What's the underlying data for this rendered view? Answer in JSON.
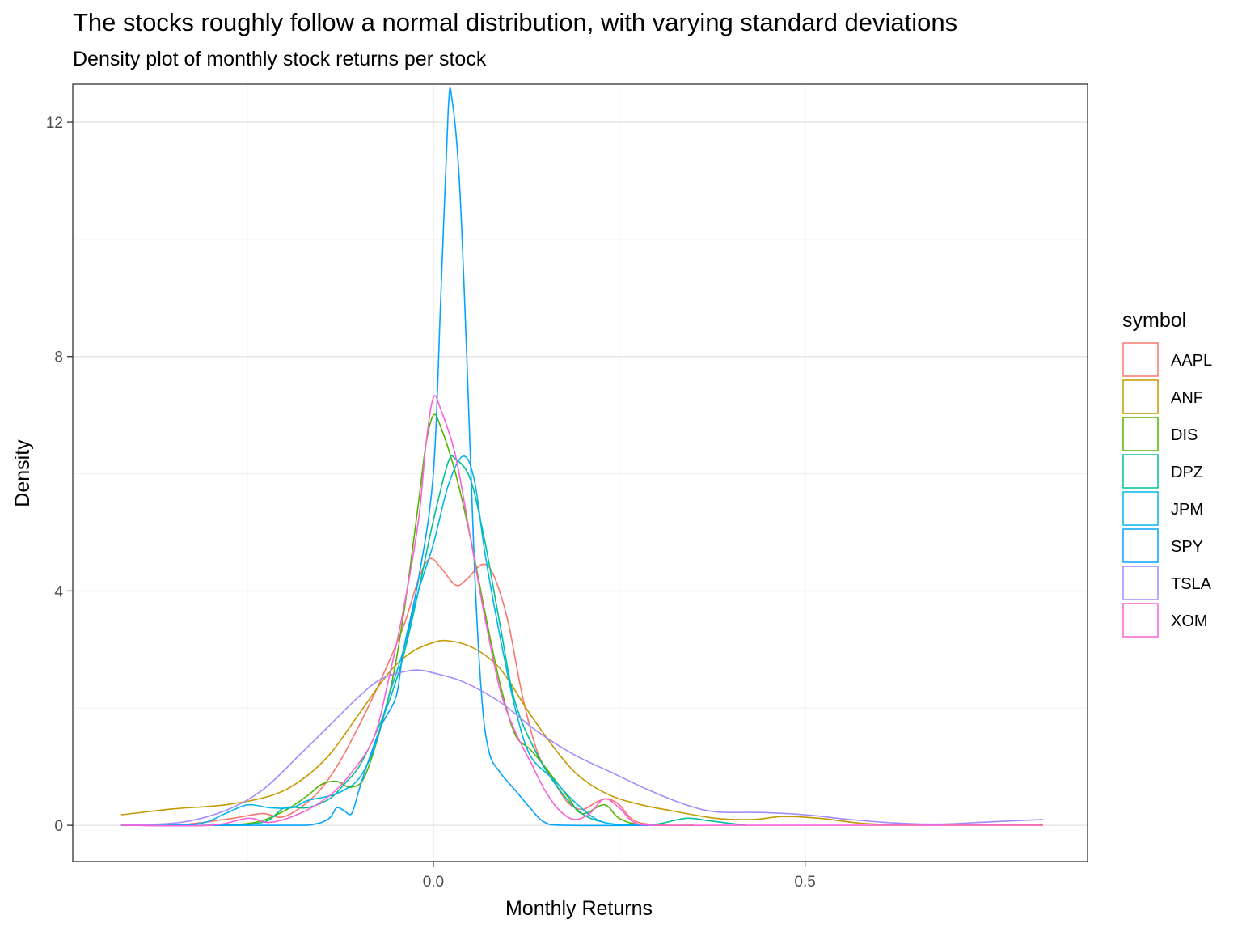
{
  "chart_data": {
    "type": "line",
    "title": "The stocks roughly follow a normal distribution, with varying standard deviations",
    "subtitle": "Density plot of monthly stock returns per stock",
    "xlabel": "Monthly Returns",
    "ylabel": "Density",
    "xlim": [
      -0.485,
      0.88
    ],
    "ylim": [
      -0.62,
      12.65
    ],
    "x_ticks": [
      0.0,
      0.5
    ],
    "x_tick_labels": [
      "0.0",
      "0.5"
    ],
    "x_minor_ticks": [
      -0.25,
      0.25,
      0.75
    ],
    "y_ticks": [
      0,
      4,
      8,
      12
    ],
    "y_tick_labels": [
      "0",
      "4",
      "8",
      "12"
    ],
    "y_minor_ticks": [
      2,
      6,
      10
    ],
    "grid": true,
    "legend": {
      "title": "symbol",
      "position": "right"
    },
    "series": [
      {
        "name": "AAPL",
        "color": "#F8766D",
        "points": [
          [
            -0.42,
            0
          ],
          [
            -0.34,
            0.01
          ],
          [
            -0.27,
            0.12
          ],
          [
            -0.23,
            0.2
          ],
          [
            -0.2,
            0.15
          ],
          [
            -0.16,
            0.5
          ],
          [
            -0.13,
            1.0
          ],
          [
            -0.1,
            1.7
          ],
          [
            -0.07,
            2.5
          ],
          [
            -0.04,
            3.4
          ],
          [
            -0.02,
            4.2
          ],
          [
            -0.005,
            4.55
          ],
          [
            0.01,
            4.4
          ],
          [
            0.03,
            4.1
          ],
          [
            0.045,
            4.2
          ],
          [
            0.065,
            4.45
          ],
          [
            0.08,
            4.3
          ],
          [
            0.1,
            3.5
          ],
          [
            0.12,
            2.2
          ],
          [
            0.14,
            1.25
          ],
          [
            0.16,
            0.8
          ],
          [
            0.18,
            0.4
          ],
          [
            0.2,
            0.27
          ],
          [
            0.22,
            0.4
          ],
          [
            0.235,
            0.45
          ],
          [
            0.25,
            0.35
          ],
          [
            0.27,
            0.08
          ],
          [
            0.3,
            0.01
          ],
          [
            0.35,
            0
          ]
        ]
      },
      {
        "name": "ANF",
        "color": "#C49A00",
        "points": [
          [
            -0.42,
            0.18
          ],
          [
            -0.35,
            0.28
          ],
          [
            -0.28,
            0.35
          ],
          [
            -0.22,
            0.5
          ],
          [
            -0.18,
            0.75
          ],
          [
            -0.14,
            1.2
          ],
          [
            -0.1,
            1.9
          ],
          [
            -0.06,
            2.6
          ],
          [
            -0.03,
            2.95
          ],
          [
            0.0,
            3.12
          ],
          [
            0.02,
            3.15
          ],
          [
            0.05,
            3.05
          ],
          [
            0.08,
            2.8
          ],
          [
            0.1,
            2.5
          ],
          [
            0.13,
            1.9
          ],
          [
            0.17,
            1.2
          ],
          [
            0.2,
            0.8
          ],
          [
            0.24,
            0.5
          ],
          [
            0.28,
            0.35
          ],
          [
            0.32,
            0.25
          ],
          [
            0.38,
            0.12
          ],
          [
            0.43,
            0.1
          ],
          [
            0.47,
            0.15
          ],
          [
            0.52,
            0.12
          ],
          [
            0.58,
            0.03
          ],
          [
            0.65,
            0.01
          ],
          [
            0.82,
            0.01
          ]
        ]
      },
      {
        "name": "DIS",
        "color": "#53B400",
        "points": [
          [
            -0.42,
            0
          ],
          [
            -0.3,
            0
          ],
          [
            -0.24,
            0.05
          ],
          [
            -0.2,
            0.25
          ],
          [
            -0.17,
            0.5
          ],
          [
            -0.15,
            0.7
          ],
          [
            -0.13,
            0.75
          ],
          [
            -0.11,
            0.65
          ],
          [
            -0.09,
            0.9
          ],
          [
            -0.06,
            2.2
          ],
          [
            -0.04,
            3.6
          ],
          [
            -0.02,
            5.5
          ],
          [
            -0.01,
            6.5
          ],
          [
            0.0,
            7.0
          ],
          [
            0.01,
            6.8
          ],
          [
            0.03,
            6.0
          ],
          [
            0.05,
            4.9
          ],
          [
            0.07,
            3.6
          ],
          [
            0.09,
            2.4
          ],
          [
            0.11,
            1.55
          ],
          [
            0.13,
            1.3
          ],
          [
            0.15,
            1.0
          ],
          [
            0.18,
            0.5
          ],
          [
            0.2,
            0.2
          ],
          [
            0.23,
            0.35
          ],
          [
            0.25,
            0.12
          ],
          [
            0.28,
            0.01
          ],
          [
            0.35,
            0
          ]
        ]
      },
      {
        "name": "DPZ",
        "color": "#00C094",
        "points": [
          [
            -0.42,
            0
          ],
          [
            -0.3,
            0
          ],
          [
            -0.23,
            0.05
          ],
          [
            -0.2,
            0.3
          ],
          [
            -0.17,
            0.3
          ],
          [
            -0.14,
            0.45
          ],
          [
            -0.12,
            0.7
          ],
          [
            -0.1,
            1.0
          ],
          [
            -0.08,
            1.5
          ],
          [
            -0.06,
            2.1
          ],
          [
            -0.04,
            2.9
          ],
          [
            -0.02,
            4.0
          ],
          [
            0.0,
            5.2
          ],
          [
            0.02,
            6.2
          ],
          [
            0.03,
            6.25
          ],
          [
            0.05,
            5.9
          ],
          [
            0.07,
            4.8
          ],
          [
            0.09,
            3.4
          ],
          [
            0.11,
            2.1
          ],
          [
            0.14,
            1.2
          ],
          [
            0.17,
            0.6
          ],
          [
            0.2,
            0.2
          ],
          [
            0.23,
            0.05
          ],
          [
            0.26,
            0.01
          ],
          [
            0.3,
            0.02
          ],
          [
            0.34,
            0.12
          ],
          [
            0.37,
            0.08
          ],
          [
            0.42,
            0
          ]
        ]
      },
      {
        "name": "JPM",
        "color": "#00B6EB",
        "points": [
          [
            -0.42,
            0
          ],
          [
            -0.32,
            0.02
          ],
          [
            -0.28,
            0.2
          ],
          [
            -0.25,
            0.35
          ],
          [
            -0.22,
            0.3
          ],
          [
            -0.19,
            0.3
          ],
          [
            -0.17,
            0.42
          ],
          [
            -0.14,
            0.5
          ],
          [
            -0.12,
            0.6
          ],
          [
            -0.1,
            0.8
          ],
          [
            -0.08,
            1.3
          ],
          [
            -0.06,
            2.2
          ],
          [
            -0.04,
            3.0
          ],
          [
            -0.02,
            4.0
          ],
          [
            0.0,
            4.8
          ],
          [
            0.02,
            5.8
          ],
          [
            0.04,
            6.3
          ],
          [
            0.055,
            5.9
          ],
          [
            0.07,
            4.6
          ],
          [
            0.09,
            3.2
          ],
          [
            0.11,
            2.0
          ],
          [
            0.13,
            1.2
          ],
          [
            0.16,
            0.8
          ],
          [
            0.19,
            0.4
          ],
          [
            0.22,
            0.1
          ],
          [
            0.25,
            0.01
          ],
          [
            0.3,
            0
          ]
        ]
      },
      {
        "name": "SPY",
        "color": "#06A4FF",
        "points": [
          [
            -0.42,
            0
          ],
          [
            -0.2,
            0
          ],
          [
            -0.16,
            0.02
          ],
          [
            -0.14,
            0.12
          ],
          [
            -0.13,
            0.3
          ],
          [
            -0.12,
            0.25
          ],
          [
            -0.11,
            0.2
          ],
          [
            -0.1,
            0.6
          ],
          [
            -0.09,
            1.0
          ],
          [
            -0.07,
            1.7
          ],
          [
            -0.05,
            2.2
          ],
          [
            -0.04,
            3.0
          ],
          [
            -0.02,
            4.2
          ],
          [
            0.0,
            6.0
          ],
          [
            0.01,
            9.0
          ],
          [
            0.02,
            12.2
          ],
          [
            0.025,
            12.4
          ],
          [
            0.035,
            11.0
          ],
          [
            0.045,
            8.0
          ],
          [
            0.055,
            4.5
          ],
          [
            0.065,
            2.2
          ],
          [
            0.075,
            1.25
          ],
          [
            0.09,
            0.9
          ],
          [
            0.11,
            0.6
          ],
          [
            0.13,
            0.3
          ],
          [
            0.15,
            0.05
          ],
          [
            0.18,
            0
          ],
          [
            0.3,
            0
          ]
        ]
      },
      {
        "name": "TSLA",
        "color": "#A58AFF",
        "points": [
          [
            -0.42,
            0
          ],
          [
            -0.34,
            0.05
          ],
          [
            -0.28,
            0.25
          ],
          [
            -0.23,
            0.6
          ],
          [
            -0.18,
            1.2
          ],
          [
            -0.14,
            1.7
          ],
          [
            -0.1,
            2.2
          ],
          [
            -0.07,
            2.5
          ],
          [
            -0.04,
            2.62
          ],
          [
            -0.02,
            2.65
          ],
          [
            0.0,
            2.6
          ],
          [
            0.04,
            2.45
          ],
          [
            0.09,
            2.1
          ],
          [
            0.14,
            1.6
          ],
          [
            0.19,
            1.2
          ],
          [
            0.24,
            0.9
          ],
          [
            0.29,
            0.6
          ],
          [
            0.34,
            0.35
          ],
          [
            0.38,
            0.23
          ],
          [
            0.44,
            0.22
          ],
          [
            0.5,
            0.18
          ],
          [
            0.56,
            0.1
          ],
          [
            0.62,
            0.04
          ],
          [
            0.68,
            0.02
          ],
          [
            0.75,
            0.06
          ],
          [
            0.82,
            0.1
          ]
        ]
      },
      {
        "name": "XOM",
        "color": "#FB61D7",
        "points": [
          [
            -0.42,
            0
          ],
          [
            -0.3,
            0
          ],
          [
            -0.25,
            0.12
          ],
          [
            -0.22,
            0.05
          ],
          [
            -0.18,
            0.2
          ],
          [
            -0.14,
            0.5
          ],
          [
            -0.11,
            0.9
          ],
          [
            -0.08,
            1.5
          ],
          [
            -0.06,
            2.5
          ],
          [
            -0.04,
            3.7
          ],
          [
            -0.02,
            5.2
          ],
          [
            -0.01,
            6.5
          ],
          [
            0.0,
            7.3
          ],
          [
            0.01,
            7.1
          ],
          [
            0.03,
            6.3
          ],
          [
            0.05,
            4.9
          ],
          [
            0.07,
            3.5
          ],
          [
            0.09,
            2.3
          ],
          [
            0.11,
            1.6
          ],
          [
            0.13,
            1.1
          ],
          [
            0.15,
            0.6
          ],
          [
            0.17,
            0.25
          ],
          [
            0.19,
            0.1
          ],
          [
            0.21,
            0.2
          ],
          [
            0.23,
            0.45
          ],
          [
            0.25,
            0.3
          ],
          [
            0.27,
            0.05
          ],
          [
            0.3,
            0
          ],
          [
            0.4,
            0
          ],
          [
            0.82,
            0
          ]
        ]
      }
    ]
  }
}
